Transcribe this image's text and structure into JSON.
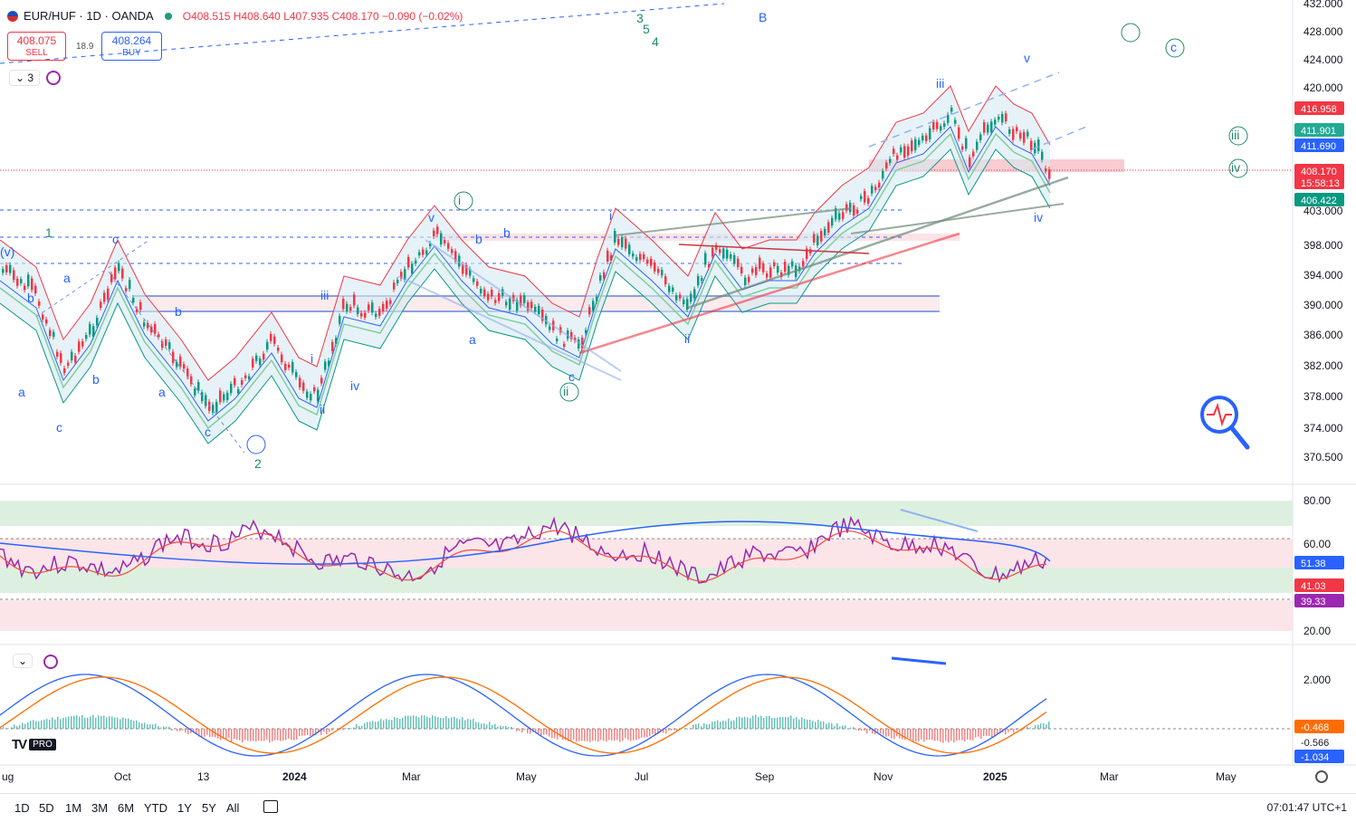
{
  "header": {
    "symbol": "EUR/HUF · 1D · OANDA",
    "open": "O408.515",
    "high": "H408.640",
    "low": "L407.935",
    "close": "C408.170",
    "change": "−0.090 (−0.02%)"
  },
  "trade": {
    "sell_price": "408.075",
    "sell_label": "SELL",
    "buy_price": "408.264",
    "buy_label": "BUY",
    "spread": "18.9"
  },
  "layers_badge": "3",
  "price_axis": {
    "ticks": [
      "432.000",
      "428.000",
      "424.000",
      "420.000",
      "403.000",
      "398.000",
      "394.000",
      "390.000",
      "386.000",
      "382.000",
      "378.000",
      "374.000",
      "370.500"
    ],
    "tags": [
      {
        "value": "416.958",
        "color": "#f23645"
      },
      {
        "value": "411.901",
        "color": "#22ab94"
      },
      {
        "value": "411.690",
        "color": "#2962ff"
      },
      {
        "value": "408.170",
        "color": "#f23645"
      },
      {
        "value": "15:58:13",
        "color": "#f23645"
      },
      {
        "value": "406.422",
        "color": "#089981"
      }
    ]
  },
  "rsi_axis": {
    "ticks": [
      "80.00",
      "60.00",
      "20.00"
    ],
    "tags": [
      {
        "value": "51.38",
        "color": "#2962ff"
      },
      {
        "value": "41.03",
        "color": "#f23645"
      },
      {
        "value": "39.33",
        "color": "#9c27b0"
      }
    ]
  },
  "macd_axis": {
    "ticks": [
      "2.000"
    ],
    "tags": [
      {
        "value": "-0.468",
        "color": "#ff6d00"
      },
      {
        "value": "-0.566",
        "color": "#ffffff"
      },
      {
        "value": "-1.034",
        "color": "#2962ff"
      }
    ]
  },
  "time_axis": [
    "ug",
    "Oct",
    "13",
    "2024",
    "Mar",
    "May",
    "Jul",
    "Sep",
    "Nov",
    "2025",
    "Mar",
    "May"
  ],
  "wave_labels": [
    "(v)",
    "1",
    "c",
    "a",
    "b",
    "b",
    "c",
    "a",
    "b",
    "a",
    "c",
    "iii",
    "i",
    "ii",
    "iv",
    "b",
    "2",
    "3",
    "5",
    "4",
    "B",
    "v",
    "i",
    "b",
    "a",
    "c",
    "ii",
    "i",
    "ii",
    "iii",
    "v",
    "c",
    "iii",
    "iv",
    "iv"
  ],
  "range_buttons": [
    "1D",
    "5D",
    "1M",
    "3M",
    "6M",
    "YTD",
    "1Y",
    "5Y",
    "All"
  ],
  "clock": "07:01:47 UTC+1",
  "colors": {
    "up": "#089981",
    "down": "#f23645",
    "accent": "#2962ff"
  },
  "tradingview_logo": "TV",
  "pro_badge": "PRO"
}
